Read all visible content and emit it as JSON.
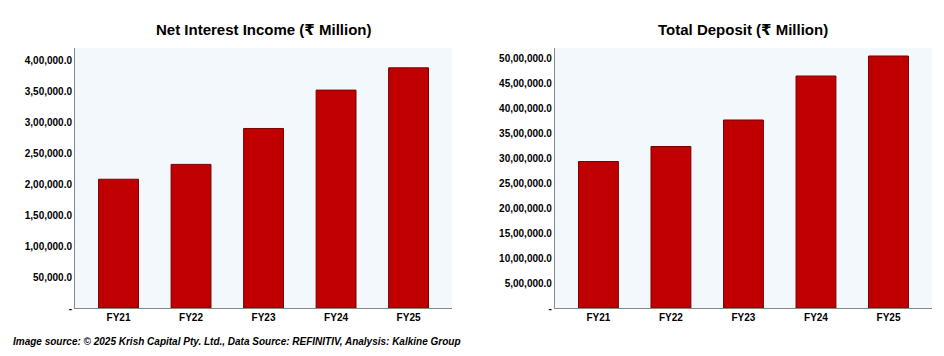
{
  "chart_data": [
    {
      "type": "bar",
      "title": "Net Interest Income (₹ Million)",
      "categories": [
        "FY21",
        "FY22",
        "FY23",
        "FY24",
        "FY25"
      ],
      "values": [
        208000,
        232000,
        290000,
        352000,
        388000
      ],
      "color": "#c00000",
      "ylim": [
        0,
        420000
      ],
      "yticks": [
        {
          "value": 0,
          "label": "-"
        },
        {
          "value": 50000,
          "label": "50,000.0"
        },
        {
          "value": 100000,
          "label": "1,00,000.0"
        },
        {
          "value": 150000,
          "label": "1,50,000.0"
        },
        {
          "value": 200000,
          "label": "2,00,000.0"
        },
        {
          "value": 250000,
          "label": "2,50,000.0"
        },
        {
          "value": 300000,
          "label": "3,00,000.0"
        },
        {
          "value": 350000,
          "label": "3,50,000.0"
        },
        {
          "value": 400000,
          "label": "4,00,000.0"
        }
      ],
      "grid": false
    },
    {
      "type": "bar",
      "title": "Total Deposit (₹ Million)",
      "categories": [
        "FY21",
        "FY22",
        "FY23",
        "FY24",
        "FY25"
      ],
      "values": [
        2930000,
        3230000,
        3760000,
        4640000,
        5040000
      ],
      "color": "#c00000",
      "ylim": [
        0,
        5200000
      ],
      "yticks": [
        {
          "value": 0,
          "label": "-"
        },
        {
          "value": 500000,
          "label": "5,00,000.0"
        },
        {
          "value": 1000000,
          "label": "10,00,000.0"
        },
        {
          "value": 1500000,
          "label": "15,00,000.0"
        },
        {
          "value": 2000000,
          "label": "20,00,000.0"
        },
        {
          "value": 2500000,
          "label": "25,00,000.0"
        },
        {
          "value": 3000000,
          "label": "30,00,000.0"
        },
        {
          "value": 3500000,
          "label": "35,00,000.0"
        },
        {
          "value": 4000000,
          "label": "40,00,000.0"
        },
        {
          "value": 4500000,
          "label": "45,00,000.0"
        },
        {
          "value": 5000000,
          "label": "50,00,000.0"
        }
      ],
      "grid": false
    }
  ],
  "source": "Image source: © 2025 Krish Capital Pty. Ltd., Data Source: REFINITIV, Analysis: Kalkine Group"
}
